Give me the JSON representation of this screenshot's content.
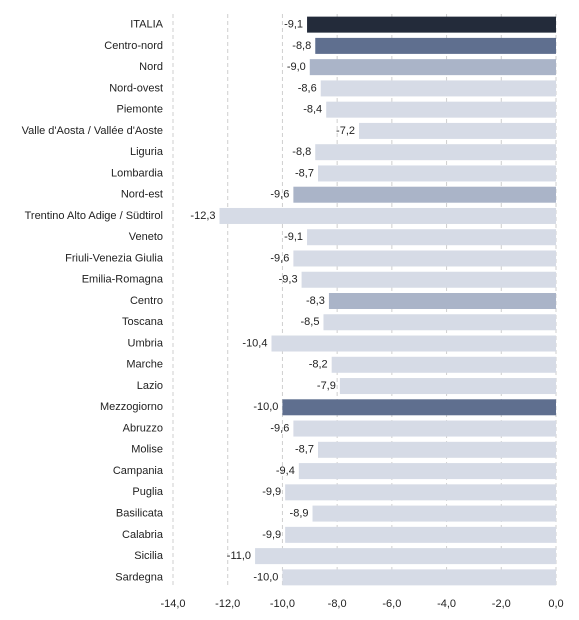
{
  "chart_data": {
    "type": "bar",
    "orientation": "horizontal",
    "categories": [
      "ITALIA",
      "Centro-nord",
      "Nord",
      "Nord-ovest",
      "Piemonte",
      "Valle d'Aosta / Vallée d'Aoste",
      "Liguria",
      "Lombardia",
      "Nord-est",
      "Trentino Alto Adige / Südtirol",
      "Veneto",
      "Friuli-Venezia Giulia",
      "Emilia-Romagna",
      "Centro",
      "Toscana",
      "Umbria",
      "Marche",
      "Lazio",
      "Mezzogiorno",
      "Abruzzo",
      "Molise",
      "Campania",
      "Puglia",
      "Basilicata",
      "Calabria",
      "Sicilia",
      "Sardegna"
    ],
    "values": [
      -9.1,
      -8.8,
      -9.0,
      -8.6,
      -8.4,
      -7.2,
      -8.8,
      -8.7,
      -9.6,
      -12.3,
      -9.1,
      -9.6,
      -9.3,
      -8.3,
      -8.5,
      -10.4,
      -8.2,
      -7.9,
      -10.0,
      -9.6,
      -8.7,
      -9.4,
      -9.9,
      -8.9,
      -9.9,
      -11.0,
      -10.0
    ],
    "value_labels": [
      "-9,1",
      "-8,8",
      "-9,0",
      "-8,6",
      "-8,4",
      "-7,2",
      "-8,8",
      "-8,7",
      "-9,6",
      "-12,3",
      "-9,1",
      "-9,6",
      "-9,3",
      "-8,3",
      "-8,5",
      "-10,4",
      "-8,2",
      "-7,9",
      "-10,0",
      "-9,6",
      "-8,7",
      "-9,4",
      "-9,9",
      "-8,9",
      "-9,9",
      "-11,0",
      "-10,0"
    ],
    "colors": [
      "#232b3a",
      "#5f6f8f",
      "#aab4c8",
      "#d6dbe6",
      "#d6dbe6",
      "#d6dbe6",
      "#d6dbe6",
      "#d6dbe6",
      "#aab4c8",
      "#d6dbe6",
      "#d6dbe6",
      "#d6dbe6",
      "#d6dbe6",
      "#aab4c8",
      "#d6dbe6",
      "#d6dbe6",
      "#d6dbe6",
      "#d6dbe6",
      "#5f6f8f",
      "#d6dbe6",
      "#d6dbe6",
      "#d6dbe6",
      "#d6dbe6",
      "#d6dbe6",
      "#d6dbe6",
      "#d6dbe6",
      "#d6dbe6"
    ],
    "xlim": [
      -14,
      0
    ],
    "xticks": [
      {
        "value": -14,
        "label": "-14,0"
      },
      {
        "value": -12,
        "label": "-12,0"
      },
      {
        "value": -10,
        "label": "-10,0"
      },
      {
        "value": -8,
        "label": "-8,0"
      },
      {
        "value": -6,
        "label": "-6,0"
      },
      {
        "value": -4,
        "label": "-4,0"
      },
      {
        "value": -2,
        "label": "-2,0"
      },
      {
        "value": 0,
        "label": "0,0"
      }
    ],
    "grid": true
  }
}
